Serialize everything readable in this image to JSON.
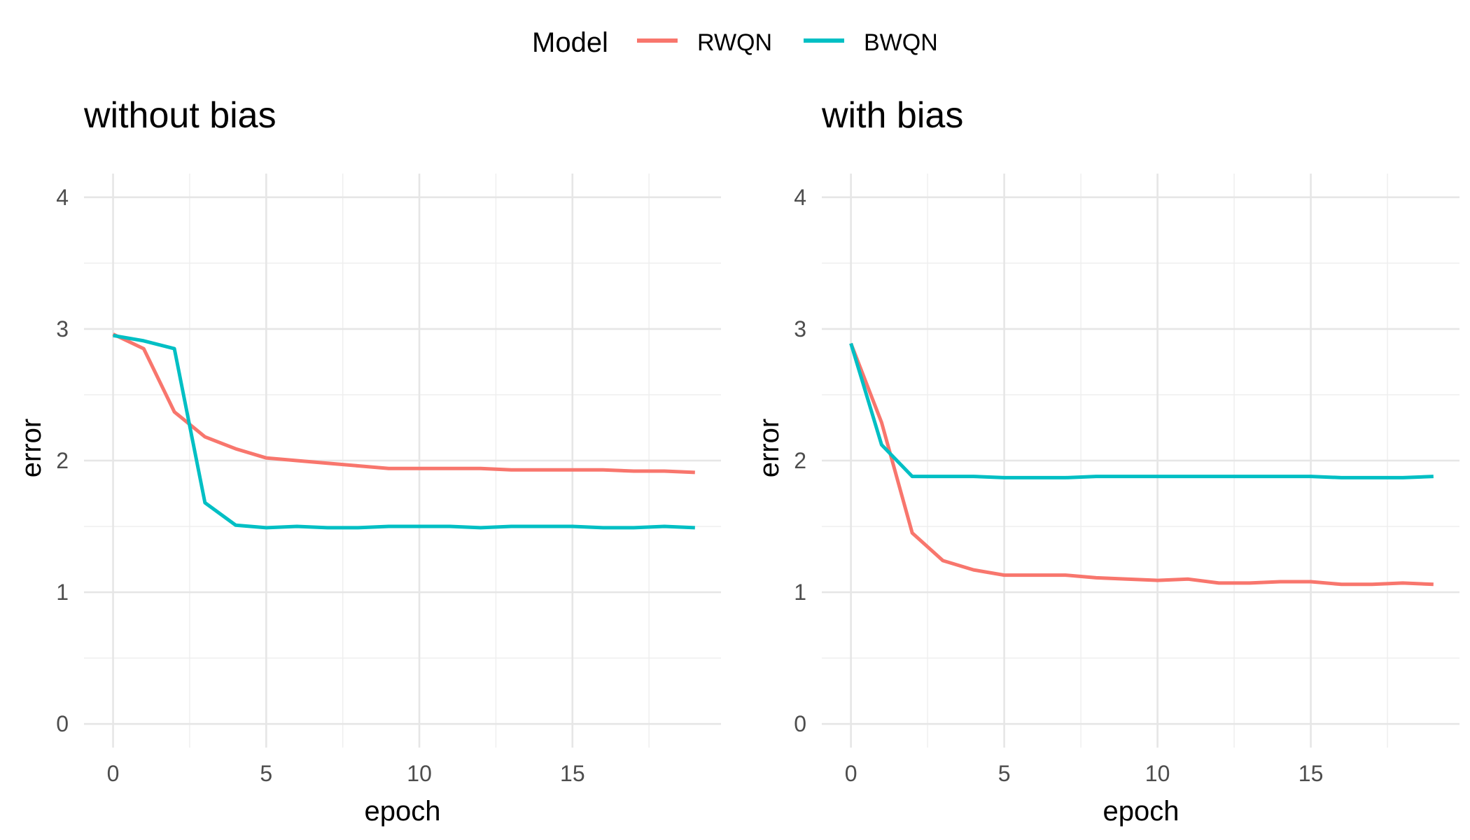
{
  "legend": {
    "title": "Model",
    "items": [
      {
        "label": "RWQN",
        "color": "#F8766D"
      },
      {
        "label": "BWQN",
        "color": "#00BFC4"
      }
    ]
  },
  "chart_data": [
    {
      "type": "line",
      "title": "without bias",
      "xlabel": "epoch",
      "ylabel": "error",
      "xlim": [
        -0.95,
        19.85
      ],
      "ylim": [
        -0.18,
        4.18
      ],
      "x_ticks": [
        0,
        5,
        10,
        15
      ],
      "y_ticks": [
        0,
        1,
        2,
        3,
        4
      ],
      "grid": true,
      "legend_position": "top",
      "x": [
        0,
        1,
        2,
        3,
        4,
        5,
        6,
        7,
        8,
        9,
        10,
        11,
        12,
        13,
        14,
        15,
        16,
        17,
        18,
        19
      ],
      "series": [
        {
          "name": "RWQN",
          "color": "#F8766D",
          "values": [
            2.96,
            2.85,
            2.37,
            2.18,
            2.09,
            2.02,
            2.0,
            1.98,
            1.96,
            1.94,
            1.94,
            1.94,
            1.94,
            1.93,
            1.93,
            1.93,
            1.93,
            1.92,
            1.92,
            1.91
          ]
        },
        {
          "name": "BWQN",
          "color": "#00BFC4",
          "values": [
            2.95,
            2.91,
            2.85,
            1.68,
            1.51,
            1.49,
            1.5,
            1.49,
            1.49,
            1.5,
            1.5,
            1.5,
            1.49,
            1.5,
            1.5,
            1.5,
            1.49,
            1.49,
            1.5,
            1.49
          ]
        }
      ]
    },
    {
      "type": "line",
      "title": "with bias",
      "xlabel": "epoch",
      "ylabel": "error",
      "xlim": [
        -0.95,
        19.85
      ],
      "ylim": [
        -0.18,
        4.18
      ],
      "x_ticks": [
        0,
        5,
        10,
        15
      ],
      "y_ticks": [
        0,
        1,
        2,
        3,
        4
      ],
      "grid": true,
      "legend_position": "top",
      "x": [
        0,
        1,
        2,
        3,
        4,
        5,
        6,
        7,
        8,
        9,
        10,
        11,
        12,
        13,
        14,
        15,
        16,
        17,
        18,
        19
      ],
      "series": [
        {
          "name": "RWQN",
          "color": "#F8766D",
          "values": [
            2.89,
            2.29,
            1.45,
            1.24,
            1.17,
            1.13,
            1.13,
            1.13,
            1.11,
            1.1,
            1.09,
            1.1,
            1.07,
            1.07,
            1.08,
            1.08,
            1.06,
            1.06,
            1.07,
            1.06
          ]
        },
        {
          "name": "BWQN",
          "color": "#00BFC4",
          "values": [
            2.89,
            2.12,
            1.88,
            1.88,
            1.88,
            1.87,
            1.87,
            1.87,
            1.88,
            1.88,
            1.88,
            1.88,
            1.88,
            1.88,
            1.88,
            1.88,
            1.87,
            1.87,
            1.87,
            1.88
          ]
        }
      ]
    }
  ]
}
